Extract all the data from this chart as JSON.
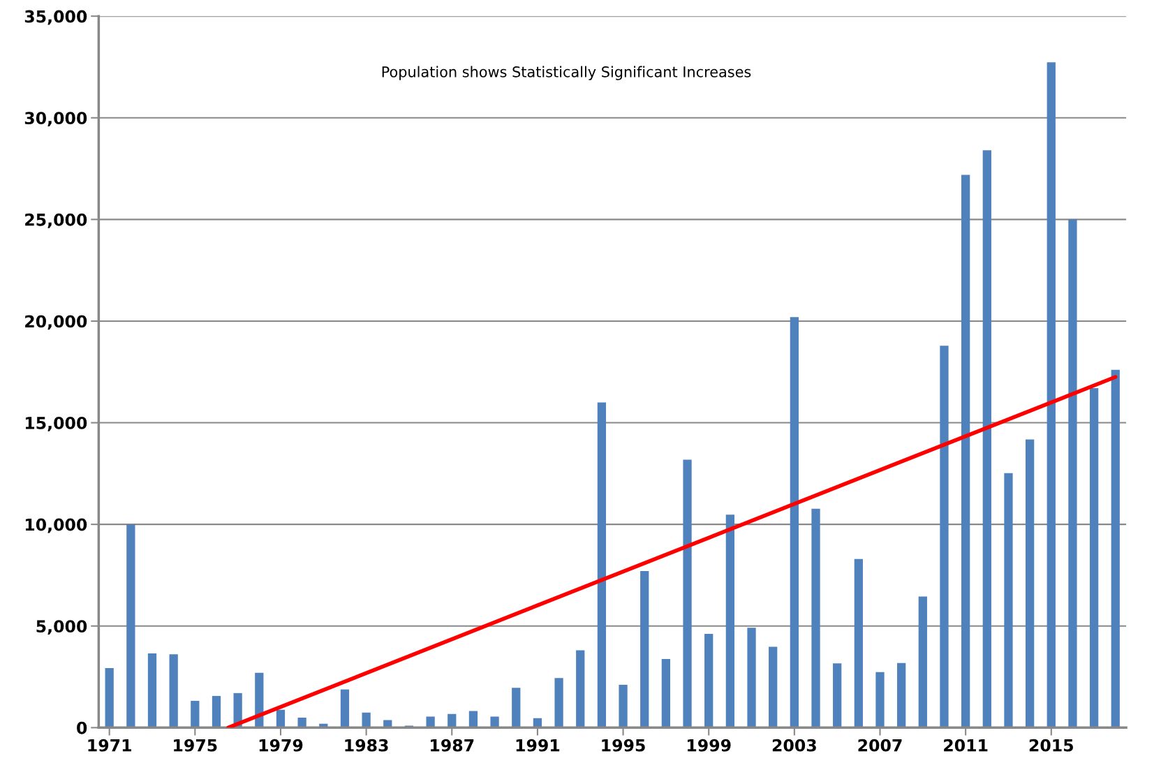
{
  "chart_data": {
    "type": "bar",
    "annotations": [
      "Population shows Statistically Significant Increases"
    ],
    "x": [
      1971,
      1972,
      1973,
      1974,
      1975,
      1976,
      1977,
      1978,
      1979,
      1980,
      1981,
      1982,
      1983,
      1984,
      1985,
      1986,
      1987,
      1988,
      1989,
      1990,
      1991,
      1992,
      1993,
      1994,
      1995,
      1996,
      1997,
      1998,
      1999,
      2000,
      2001,
      2002,
      2003,
      2004,
      2005,
      2006,
      2007,
      2008,
      2009,
      2010,
      2011,
      2012,
      2013,
      2014,
      2015,
      2016,
      2017,
      2018
    ],
    "series": [
      {
        "color": "#4f81bd",
        "values": [
          2930,
          10000,
          3650,
          3610,
          1320,
          1560,
          1700,
          2700,
          880,
          490,
          190,
          1880,
          740,
          370,
          100,
          540,
          670,
          820,
          540,
          1960,
          470,
          2440,
          3810,
          16000,
          2110,
          7700,
          3380,
          13180,
          4610,
          10480,
          4910,
          3980,
          20200,
          10770,
          3160,
          8300,
          2730,
          3180,
          6450,
          18790,
          27190,
          28400,
          12520,
          14180,
          32730,
          25000,
          16700,
          17600
        ]
      },
      {
        "type": "line",
        "color": "#ff0000",
        "x": [
          1976.55,
          2018
        ],
        "values": [
          0,
          17250
        ]
      }
    ],
    "xlim": [
      1970.5,
      2018.5
    ],
    "xticks": [
      1971,
      1975,
      1979,
      1983,
      1987,
      1991,
      1995,
      1999,
      2003,
      2007,
      2011,
      2015
    ],
    "ylim": [
      0,
      35000
    ],
    "yticks": [
      {
        "value": 0,
        "label": "0"
      },
      {
        "value": 5000,
        "label": "5,000"
      },
      {
        "value": 10000,
        "label": "10,000"
      },
      {
        "value": 15000,
        "label": "15,000"
      },
      {
        "value": 20000,
        "label": "20,000"
      },
      {
        "value": 25000,
        "label": "25,000"
      },
      {
        "value": 30000,
        "label": "30,000"
      },
      {
        "value": 35000,
        "label": "35,000"
      }
    ],
    "grid": "y",
    "legend": false
  }
}
